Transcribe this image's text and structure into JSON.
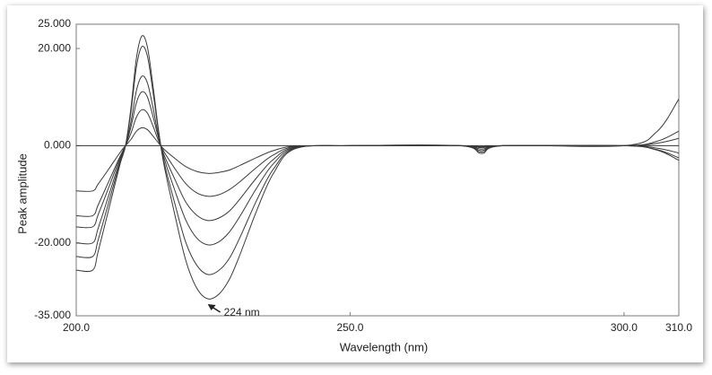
{
  "chart_data": {
    "type": "line",
    "y_label": "Peak amplitude",
    "x_label": "Wavelength (nm)",
    "annotation": "224 nm",
    "annotation_x": 224,
    "x": [
      200,
      203,
      204,
      206,
      208,
      209,
      210,
      211,
      212,
      213,
      214,
      215,
      216,
      218,
      220,
      222,
      224,
      226,
      228,
      230,
      233,
      236,
      240,
      250,
      270,
      274,
      278,
      300,
      306,
      310
    ],
    "series": [
      {
        "color": "#3a3a3a",
        "values": [
          -25.6,
          -25.6,
          -21.8,
          -12.8,
          -3.8,
          0,
          7.9,
          18.1,
          22.6,
          20.3,
          12.4,
          3.4,
          -3.8,
          -14.2,
          -23.6,
          -29.3,
          -31.5,
          -30.6,
          -27.4,
          -22.1,
          -13.2,
          -5.7,
          -0.6,
          0,
          0,
          -1.6,
          0,
          0,
          2.9,
          9.6
        ]
      },
      {
        "color": "#3a3a3a",
        "values": [
          -22.8,
          -22.8,
          -19.4,
          -11.4,
          -3.4,
          0,
          7.1,
          16.3,
          20.4,
          18.4,
          11.2,
          3.1,
          -3.2,
          -11.9,
          -19.9,
          -24.6,
          -26.5,
          -25.7,
          -23.1,
          -18.6,
          -11.1,
          -4.8,
          -0.5,
          0,
          0,
          -1.3,
          0,
          0,
          0.9,
          3.0
        ]
      },
      {
        "color": "#3a3a3a",
        "values": [
          -20.0,
          -20.0,
          -17.0,
          -10.0,
          -3.0,
          0,
          5.0,
          11.4,
          14.3,
          12.9,
          7.9,
          2.1,
          -2.4,
          -9.2,
          -15.3,
          -19.0,
          -20.4,
          -19.8,
          -17.7,
          -14.3,
          -8.6,
          -3.7,
          -0.4,
          0,
          0,
          -1.0,
          0,
          0,
          0.5,
          1.5
        ]
      },
      {
        "color": "#3a3a3a",
        "values": [
          -16.7,
          -16.7,
          -14.2,
          -8.4,
          -2.5,
          0,
          3.9,
          8.9,
          11.1,
          10.0,
          6.1,
          1.7,
          -1.8,
          -6.9,
          -11.6,
          -14.3,
          -15.4,
          -14.9,
          -13.4,
          -10.8,
          -6.5,
          -2.8,
          -0.3,
          0,
          0,
          -0.7,
          0,
          0,
          -0.5,
          -1.5
        ]
      },
      {
        "color": "#3a3a3a",
        "values": [
          -14.4,
          -14.4,
          -12.2,
          -7.2,
          -2.2,
          0,
          2.6,
          5.9,
          7.4,
          6.7,
          4.1,
          1.1,
          -1.2,
          -4.7,
          -7.8,
          -9.7,
          -10.4,
          -10.1,
          -9.0,
          -7.3,
          -4.4,
          -1.9,
          -0.2,
          0,
          0,
          -0.4,
          0,
          0,
          -0.8,
          -2.5
        ]
      },
      {
        "color": "#3a3a3a",
        "values": [
          -9.3,
          -9.3,
          -7.9,
          -4.7,
          -1.4,
          0,
          1.3,
          3.0,
          3.7,
          3.3,
          2.0,
          0.6,
          -0.7,
          -2.6,
          -4.3,
          -5.3,
          -5.7,
          -5.5,
          -5.0,
          -4.0,
          -2.4,
          -1.0,
          -0.1,
          0,
          0,
          -0.2,
          0,
          0,
          -0.9,
          -3.0
        ]
      }
    ],
    "xlim": [
      200,
      310
    ],
    "xticks": [
      {
        "value": 200,
        "label": "200.0"
      },
      {
        "value": 250,
        "label": "250.0"
      },
      {
        "value": 300,
        "label": "300.0"
      },
      {
        "value": 310,
        "label": "310.0"
      }
    ],
    "ylim": [
      -35,
      25
    ],
    "yticks": [
      {
        "value": -35,
        "label": "-35.000"
      },
      {
        "value": -20,
        "label": "-20.000"
      },
      {
        "value": 0,
        "label": "0.000"
      },
      {
        "value": 20,
        "label": "20.000"
      },
      {
        "value": 25,
        "label": "25.000"
      }
    ],
    "grid": false,
    "zero_line": true
  }
}
